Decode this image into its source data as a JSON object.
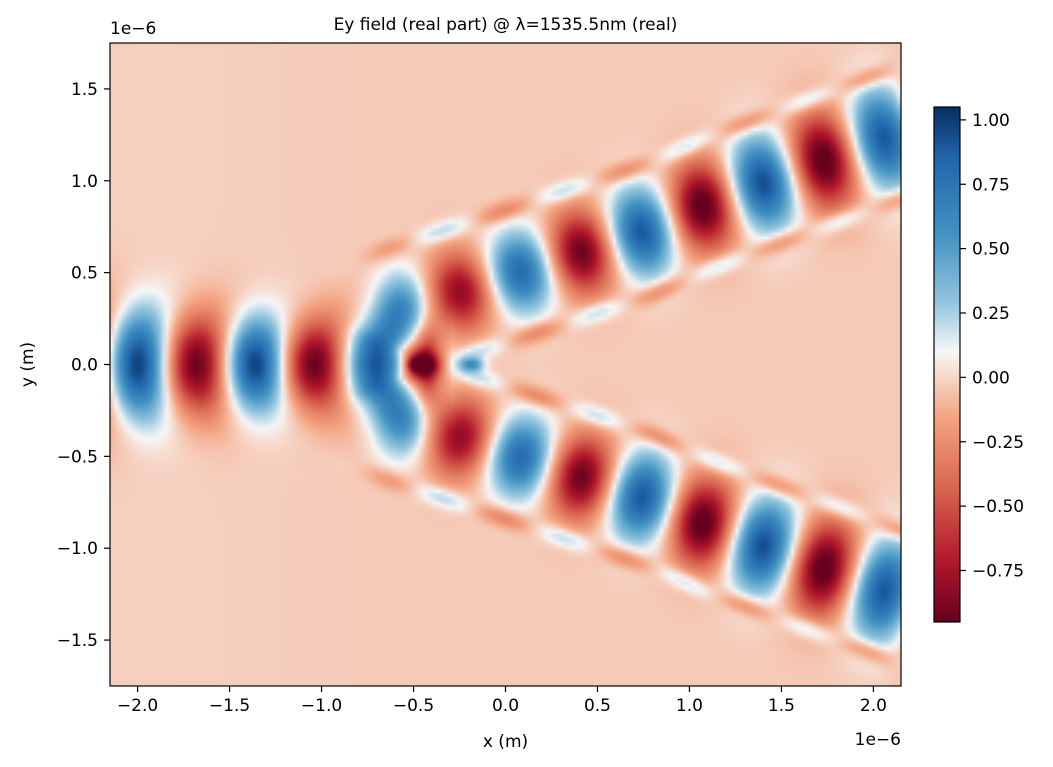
{
  "chart_data": {
    "type": "heatmap",
    "title": "Ey field (real part) @ λ=1535.5nm (real)",
    "xlabel": "x (m)",
    "ylabel": "y (m)",
    "x_offset_label": "1e−6",
    "y_offset_label": "1e−6",
    "xlim": [
      -2.15,
      2.15
    ],
    "ylim": [
      -1.75,
      1.75
    ],
    "x_ticks": [
      -2.0,
      -1.5,
      -1.0,
      -0.5,
      0.0,
      0.5,
      1.0,
      1.5,
      2.0
    ],
    "x_tick_labels": [
      "−2.0",
      "−1.5",
      "−1.0",
      "−0.5",
      "0.0",
      "0.5",
      "1.0",
      "1.5",
      "2.0"
    ],
    "y_ticks": [
      1.5,
      1.0,
      0.5,
      0.0,
      -0.5,
      -1.0,
      -1.5
    ],
    "y_tick_labels": [
      "1.5",
      "1.0",
      "0.5",
      "0.0",
      "−0.5",
      "−1.0",
      "−1.5"
    ],
    "colormap": "RdBu",
    "colorbar": {
      "vmin": -0.95,
      "vmax": 1.05,
      "ticks": [
        1.0,
        0.75,
        0.5,
        0.25,
        0.0,
        -0.25,
        -0.5,
        -0.75
      ],
      "tick_labels": [
        "1.00",
        "0.75",
        "0.50",
        "0.25",
        "0.00",
        "−0.25",
        "−0.50",
        "−0.75"
      ]
    },
    "grid": false,
    "colors": {
      "negative": "#67001f",
      "zero": "#f7f7f7",
      "positive": "#053061"
    }
  }
}
